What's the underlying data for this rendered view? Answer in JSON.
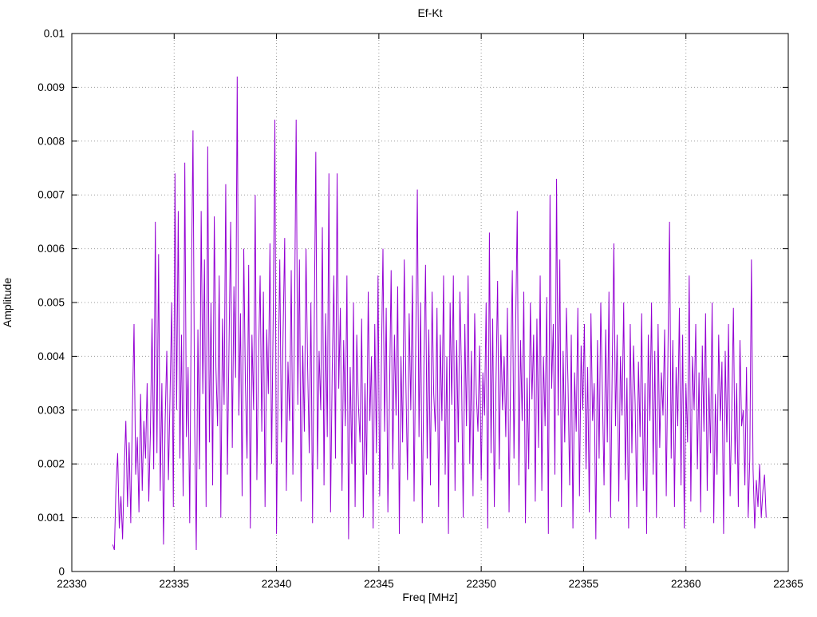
{
  "chart_data": {
    "type": "line",
    "title": "Ef-Kt",
    "xlabel": "Freq [MHz]",
    "ylabel": "Amplitude",
    "xlim": [
      22330,
      22365
    ],
    "ylim": [
      0,
      0.01
    ],
    "x_ticks": [
      22330,
      22335,
      22340,
      22345,
      22350,
      22355,
      22360,
      22365
    ],
    "x_tick_labels": [
      "22330",
      "22335",
      "22340",
      "22345",
      "22350",
      "22355",
      "22360",
      "22365"
    ],
    "y_ticks": [
      0,
      0.001,
      0.002,
      0.003,
      0.004,
      0.005,
      0.006,
      0.007,
      0.008,
      0.009,
      0.01
    ],
    "y_tick_labels": [
      "0",
      "0.001",
      "0.002",
      "0.003",
      "0.004",
      "0.005",
      "0.006",
      "0.007",
      "0.008",
      "0.009",
      "0.01"
    ],
    "grid": true,
    "grid_style": "dotted",
    "grid_color": "#9a9a9a",
    "legend": "none",
    "line_color": "#9400d3",
    "series": [
      {
        "name": "Ef-Kt",
        "x_start": 22332.0,
        "x_step": 0.08,
        "y_scale": 0.0001,
        "y_values": [
          5,
          4,
          16,
          22,
          8,
          14,
          6,
          19,
          28,
          12,
          24,
          9,
          30,
          46,
          18,
          25,
          11,
          33,
          15,
          28,
          21,
          35,
          13,
          26,
          47,
          19,
          65,
          22,
          59,
          15,
          35,
          5,
          28,
          41,
          17,
          33,
          50,
          12,
          74,
          30,
          67,
          21,
          44,
          14,
          76,
          25,
          38,
          9,
          52,
          82,
          28,
          4,
          45,
          19,
          67,
          33,
          58,
          12,
          79,
          24,
          50,
          16,
          66,
          38,
          27,
          55,
          10,
          47,
          31,
          72,
          18,
          42,
          65,
          23,
          53,
          36,
          92,
          29,
          48,
          14,
          60,
          35,
          21,
          57,
          8,
          44,
          30,
          70,
          17,
          39,
          55,
          26,
          52,
          12,
          45,
          33,
          61,
          20,
          48,
          84,
          7,
          36,
          58,
          24,
          44,
          62,
          15,
          39,
          28,
          56,
          18,
          47,
          84,
          31,
          58,
          13,
          42,
          26,
          60,
          38,
          22,
          50,
          9,
          45,
          78,
          19,
          41,
          30,
          64,
          16,
          48,
          25,
          74,
          11,
          37,
          55,
          21,
          74,
          34,
          49,
          15,
          43,
          27,
          55,
          6,
          38,
          20,
          50,
          12,
          44,
          31,
          24,
          47,
          10,
          35,
          18,
          52,
          28,
          40,
          8,
          46,
          22,
          55,
          14,
          38,
          60,
          26,
          49,
          11,
          33,
          56,
          19,
          44,
          29,
          53,
          7,
          40,
          24,
          58,
          35,
          17,
          48,
          30,
          55,
          13,
          42,
          71,
          25,
          50,
          9,
          38,
          57,
          21,
          45,
          16,
          52,
          33,
          26,
          49,
          12,
          44,
          28,
          55,
          18,
          40,
          7,
          50,
          31,
          55,
          15,
          43,
          24,
          52,
          36,
          10,
          46,
          27,
          55,
          20,
          41,
          14,
          48,
          33,
          26,
          42,
          17,
          37,
          29,
          50,
          8,
          63,
          22,
          47,
          12,
          35,
          54,
          19,
          44,
          30,
          40,
          25,
          49,
          11,
          38,
          56,
          21,
          45,
          67,
          16,
          43,
          28,
          52,
          9,
          36,
          19,
          50,
          32,
          44,
          13,
          47,
          23,
          55,
          15,
          40,
          27,
          51,
          7,
          70,
          34,
          46,
          18,
          73,
          29,
          58,
          12,
          41,
          24,
          49,
          35,
          16,
          44,
          8,
          37,
          26,
          49,
          14,
          42,
          30,
          46,
          19,
          38,
          11,
          48,
          28,
          35,
          6,
          43,
          21,
          50,
          33,
          16,
          45,
          24,
          52,
          10,
          38,
          61,
          27,
          44,
          13,
          40,
          29,
          50,
          17,
          36,
          8,
          46,
          22,
          42,
          31,
          12,
          39,
          25,
          48,
          15,
          35,
          7,
          44,
          28,
          50,
          18,
          41,
          10,
          46,
          23,
          37,
          29,
          45,
          14,
          40,
          65,
          21,
          43,
          12,
          38,
          27,
          49,
          16,
          44,
          8,
          35,
          24,
          55,
          13,
          40,
          30,
          46,
          19,
          37,
          11,
          42,
          26,
          48,
          15,
          36,
          22,
          50,
          9,
          33,
          18,
          44,
          28,
          39,
          7,
          41,
          24,
          46,
          14,
          30,
          49,
          20,
          35,
          12,
          43,
          27,
          30,
          16,
          38,
          10,
          21,
          58,
          19,
          8,
          17,
          12,
          20,
          10,
          15,
          18,
          10
        ]
      }
    ]
  }
}
